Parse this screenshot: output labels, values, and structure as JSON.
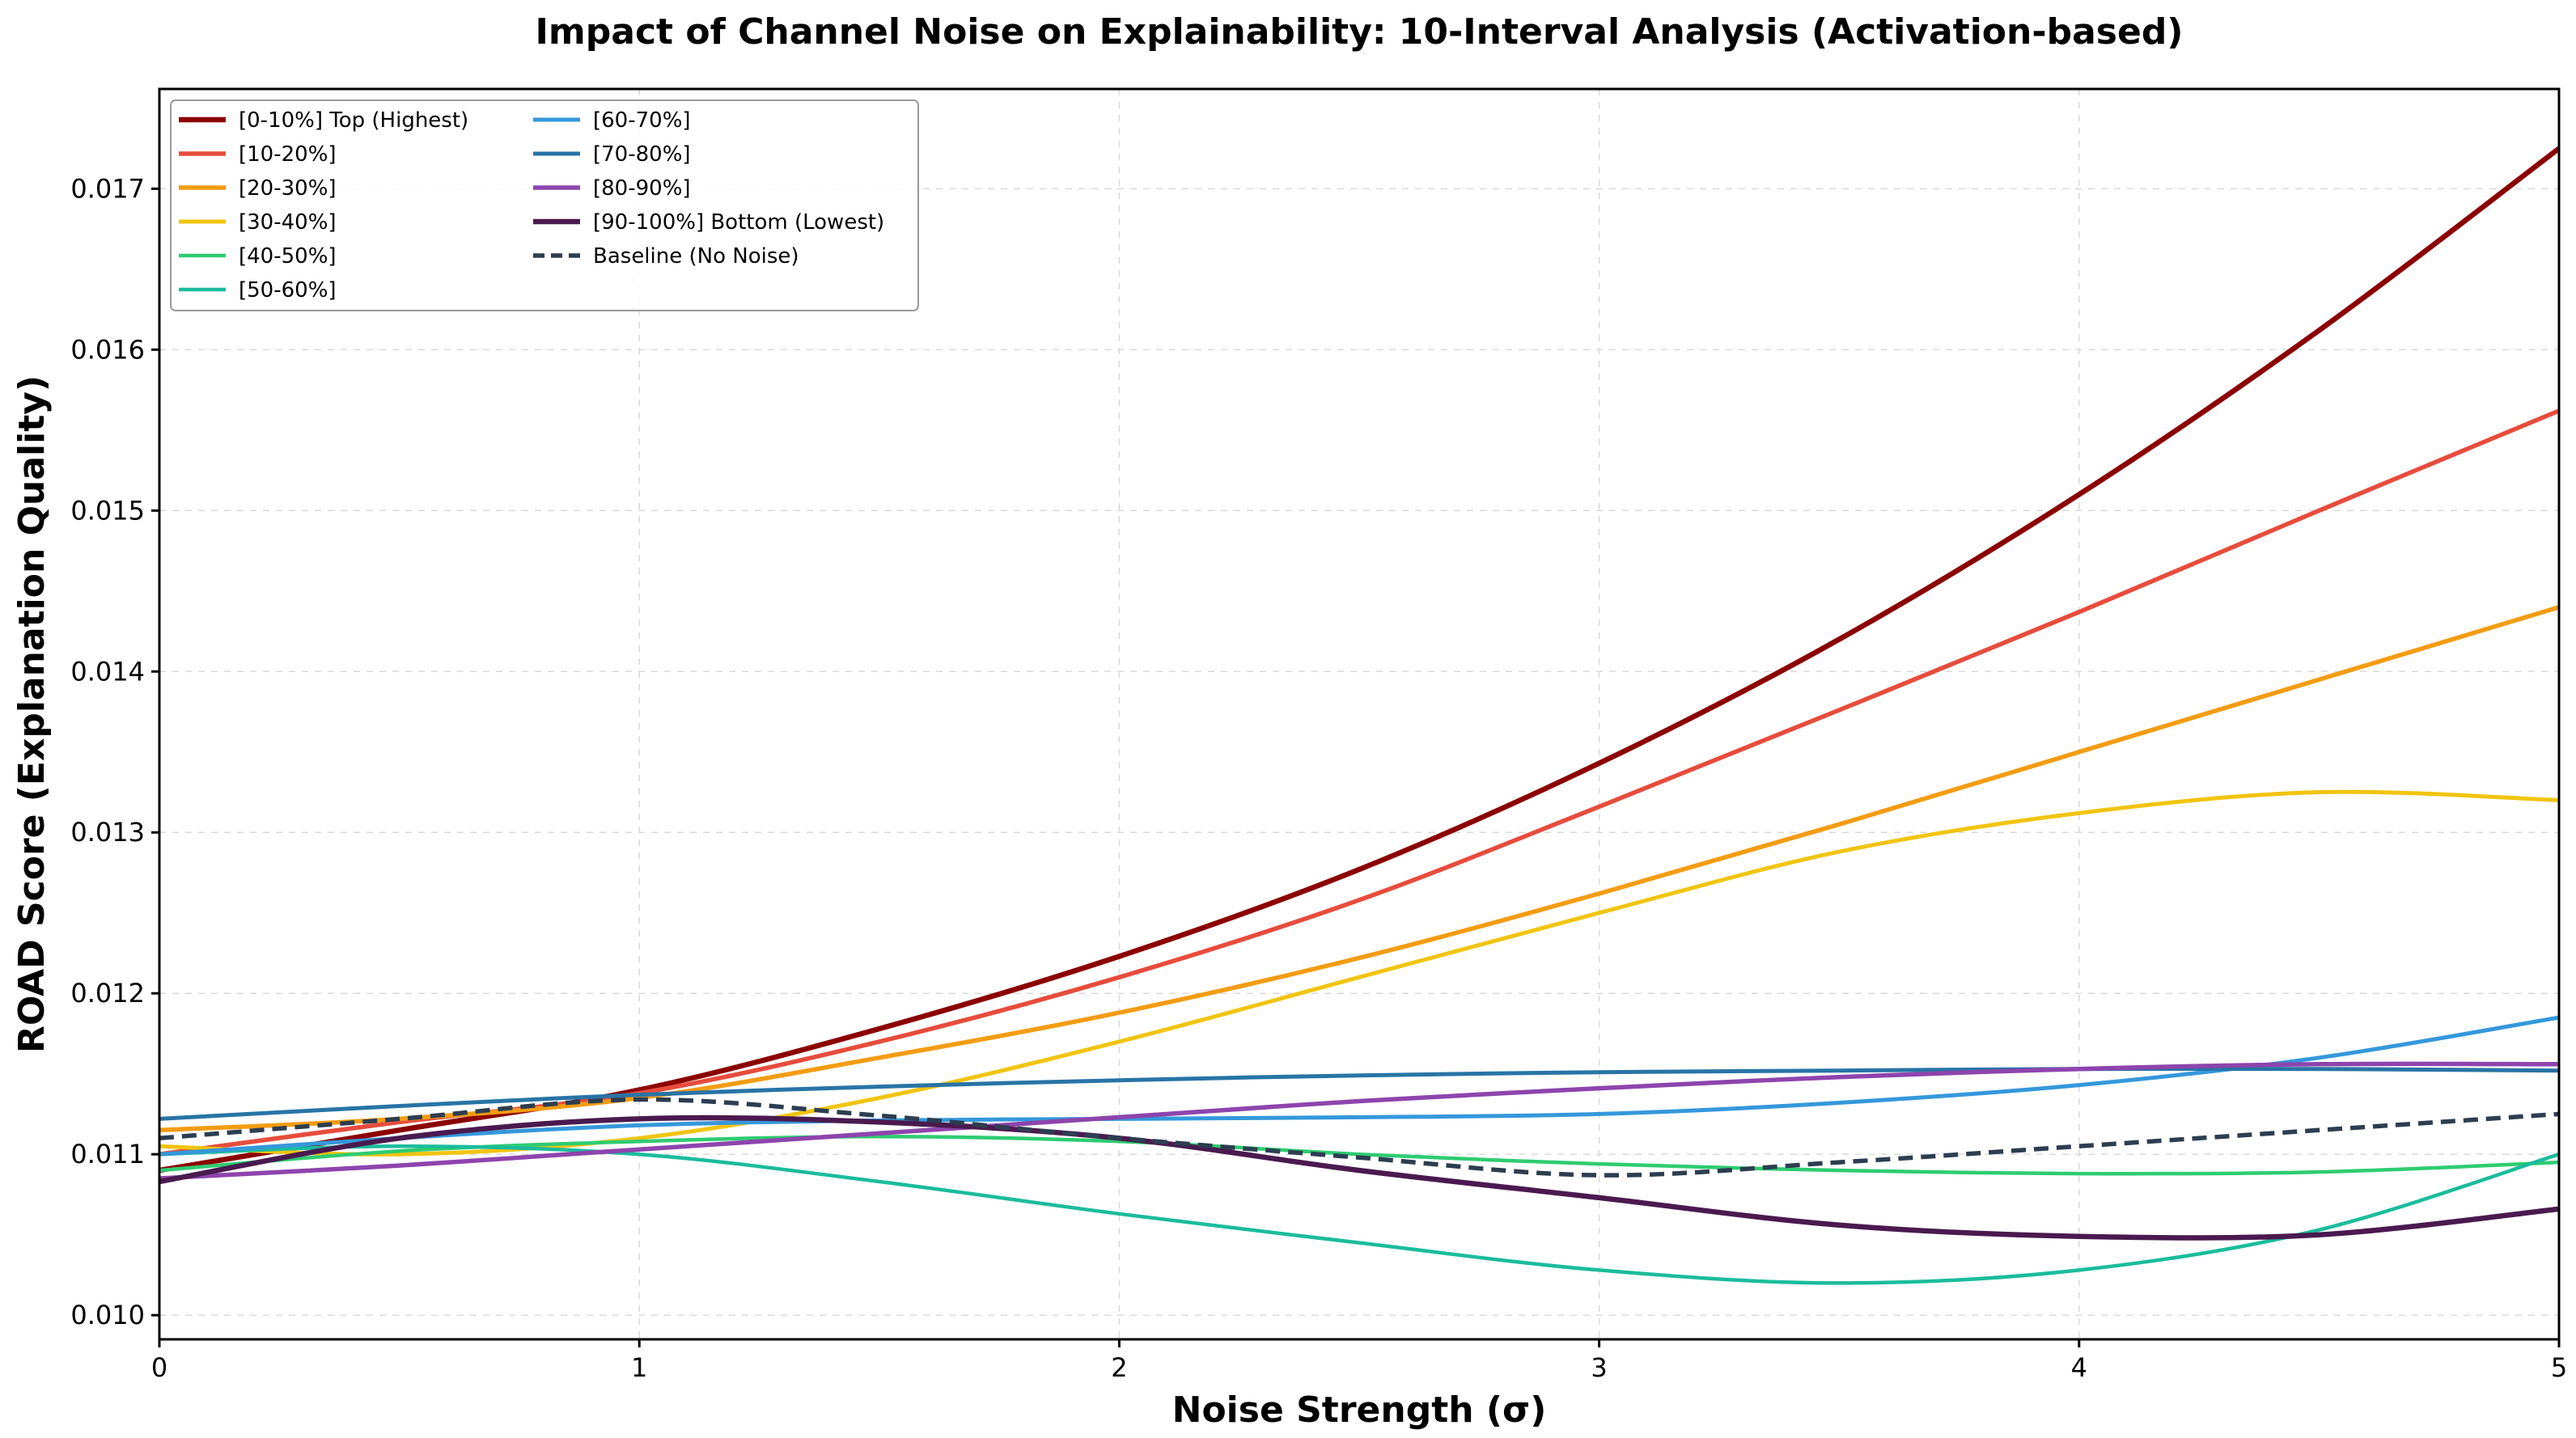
{
  "chart_data": {
    "type": "line",
    "title": "Impact of Channel Noise on Explainability: 10-Interval Analysis (Activation-based)",
    "xlabel": "Noise Strength (σ)",
    "ylabel": "ROAD Score (Explanation Quality)",
    "xlim": [
      0,
      5
    ],
    "ylim": [
      0.00985,
      0.01762
    ],
    "xticks": [
      "0",
      "1",
      "2",
      "3",
      "4",
      "5"
    ],
    "yticks": [
      "0.010",
      "0.011",
      "0.012",
      "0.013",
      "0.014",
      "0.015",
      "0.016",
      "0.017"
    ],
    "grid": true,
    "legend_position": "upper-left",
    "x": [
      0,
      0.5,
      1,
      1.5,
      2,
      2.5,
      3,
      3.5,
      4,
      4.5,
      5
    ],
    "series": [
      {
        "name": "[0-10%] Top (Highest)",
        "color": "#8B0000",
        "width": 6.5,
        "dash": "solid",
        "values": [
          0.0109,
          0.01115,
          0.0114,
          0.01178,
          0.01223,
          0.01277,
          0.01343,
          0.0142,
          0.0151,
          0.01612,
          0.01725
        ]
      },
      {
        "name": "[10-20%]",
        "color": "#E74C3C",
        "width": 5.5,
        "dash": "solid",
        "values": [
          0.011,
          0.0112,
          0.01138,
          0.0117,
          0.0121,
          0.01258,
          0.01316,
          0.01376,
          0.01437,
          0.015,
          0.01562
        ]
      },
      {
        "name": "[20-30%]",
        "color": "#F39C12",
        "width": 5.5,
        "dash": "solid",
        "values": [
          0.01115,
          0.01122,
          0.01135,
          0.0116,
          0.01188,
          0.01222,
          0.01262,
          0.01305,
          0.0135,
          0.01395,
          0.0144
        ]
      },
      {
        "name": "[30-40%]",
        "color": "#F1C40F",
        "width": 5,
        "dash": "solid",
        "values": [
          0.01105,
          0.011,
          0.0111,
          0.01135,
          0.0117,
          0.0121,
          0.0125,
          0.01288,
          0.01312,
          0.01325,
          0.0132
        ]
      },
      {
        "name": "[40-50%]",
        "color": "#2ECC71",
        "width": 4.5,
        "dash": "solid",
        "values": [
          0.0109,
          0.01102,
          0.01108,
          0.01111,
          0.01108,
          0.011,
          0.01094,
          0.0109,
          0.01088,
          0.01089,
          0.01095
        ]
      },
      {
        "name": "[50-60%]",
        "color": "#1ABC9C",
        "width": 4.5,
        "dash": "solid",
        "values": [
          0.011,
          0.01105,
          0.011,
          0.01083,
          0.01063,
          0.01045,
          0.01028,
          0.0102,
          0.01028,
          0.01053,
          0.011
        ]
      },
      {
        "name": "[60-70%]",
        "color": "#3498DB",
        "width": 5,
        "dash": "solid",
        "values": [
          0.011,
          0.0111,
          0.01118,
          0.01121,
          0.01122,
          0.01123,
          0.01125,
          0.01132,
          0.01143,
          0.0116,
          0.01185
        ]
      },
      {
        "name": "[70-80%]",
        "color": "#2874A6",
        "width": 5,
        "dash": "solid",
        "values": [
          0.01122,
          0.0113,
          0.01137,
          0.01142,
          0.01146,
          0.01149,
          0.01151,
          0.01152,
          0.01153,
          0.01153,
          0.01152
        ]
      },
      {
        "name": "[80-90%]",
        "color": "#8E44AD",
        "width": 5.5,
        "dash": "solid",
        "values": [
          0.01085,
          0.01093,
          0.01103,
          0.01113,
          0.01123,
          0.01133,
          0.01141,
          0.01148,
          0.01153,
          0.01156,
          0.01156
        ]
      },
      {
        "name": "[90-100%] Bottom (Lowest)",
        "color": "#4A1A4F",
        "width": 6.5,
        "dash": "solid",
        "values": [
          0.01083,
          0.0111,
          0.01122,
          0.0112,
          0.0111,
          0.0109,
          0.01073,
          0.01056,
          0.01049,
          0.0105,
          0.01066
        ]
      },
      {
        "name": "Baseline (No Noise)",
        "color": "#2C3E50",
        "width": 5.5,
        "dash": "dashed",
        "values": [
          0.0111,
          0.01122,
          0.01134,
          0.01124,
          0.0111,
          0.01098,
          0.01087,
          0.01095,
          0.01105,
          0.01115,
          0.01125
        ]
      }
    ]
  }
}
